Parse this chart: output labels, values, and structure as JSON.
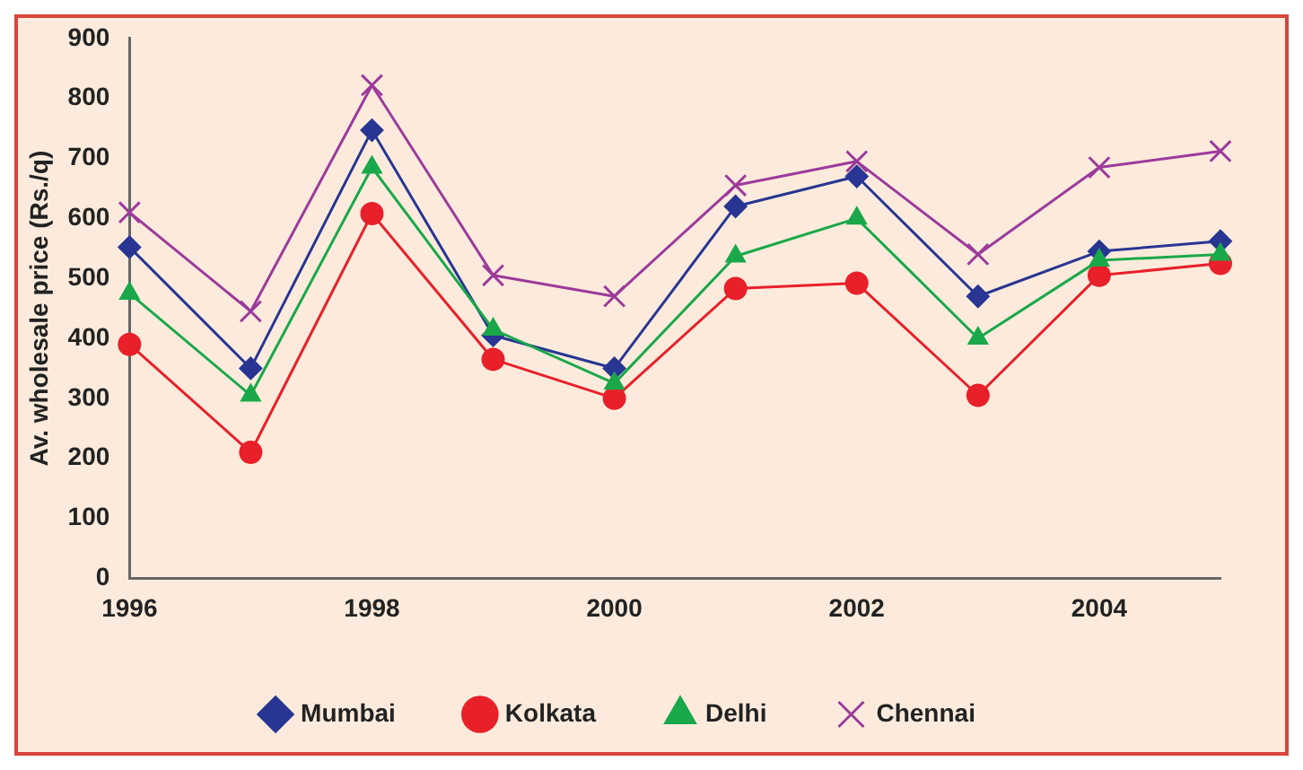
{
  "chart_data": {
    "type": "line",
    "ylabel": "Av. wholesale price (Rs./q)",
    "categories": [
      "1996",
      null,
      "1998",
      null,
      "2000",
      null,
      "2002",
      null,
      "2004",
      null
    ],
    "ylim": [
      0,
      900
    ],
    "yticks": [
      0,
      100,
      200,
      300,
      400,
      500,
      600,
      700,
      800,
      900
    ],
    "grid": false,
    "legend": "bottom",
    "series": [
      {
        "name": "Mumbai",
        "color": "#283593",
        "marker": "diamond",
        "values": [
          552,
          350,
          747,
          405,
          350,
          620,
          670,
          470,
          545,
          562
        ]
      },
      {
        "name": "Kolkata",
        "color": "#e8202a",
        "marker": "circle",
        "values": [
          390,
          210,
          608,
          365,
          300,
          483,
          492,
          305,
          505,
          525
        ]
      },
      {
        "name": "Delhi",
        "color": "#1aa84a",
        "marker": "triangle",
        "values": [
          475,
          305,
          685,
          415,
          325,
          537,
          600,
          400,
          530,
          540
        ]
      },
      {
        "name": "Chennai",
        "color": "#9c3a9c",
        "marker": "cross",
        "values": [
          610,
          445,
          822,
          505,
          470,
          655,
          695,
          540,
          685,
          712
        ]
      }
    ]
  }
}
